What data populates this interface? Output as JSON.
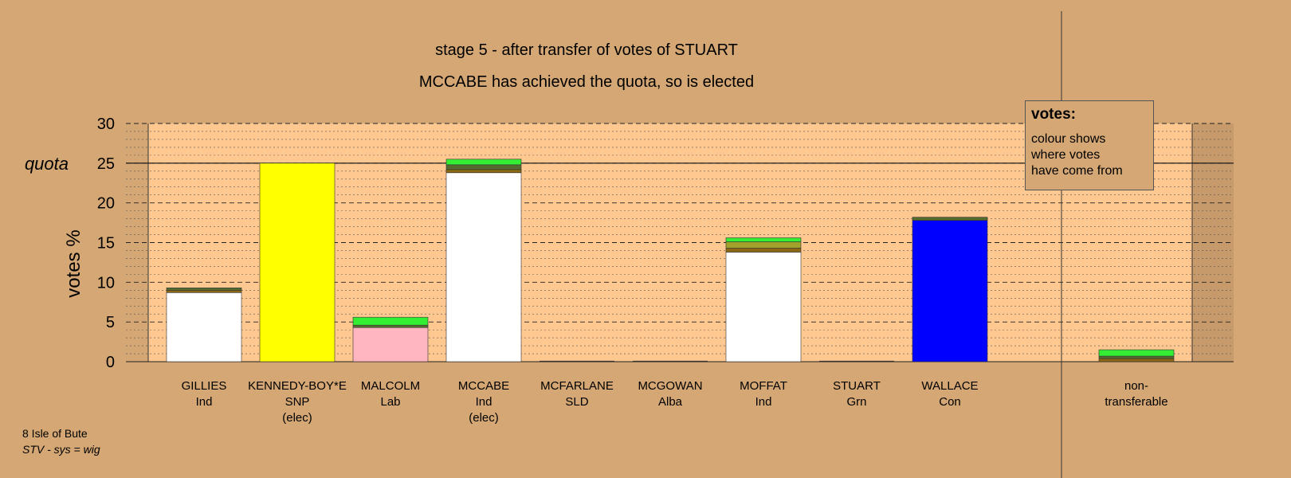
{
  "title": "stage 5 - after transfer of votes of STUART",
  "subtitle": "MCCABE has achieved the quota, so is elected",
  "legend": {
    "title": "votes:",
    "lines": [
      "colour shows",
      "where votes",
      "have come from"
    ]
  },
  "footer": {
    "line1": "8 Isle of Bute",
    "line2": "STV - sys = wig"
  },
  "chart_data": {
    "type": "bar",
    "stacked": true,
    "ylabel": "votes %",
    "ylim": [
      0,
      30
    ],
    "yticks": [
      0,
      5,
      10,
      15,
      20,
      25,
      30
    ],
    "quota": 25,
    "quota_label": "quota",
    "grid": true,
    "legend_position": "top-right",
    "categories": [
      {
        "name": "GILLIES",
        "party": "Ind",
        "status": ""
      },
      {
        "name": "KENNEDY-BOY*E",
        "party": "SNP",
        "status": "(elec)"
      },
      {
        "name": "MALCOLM",
        "party": "Lab",
        "status": ""
      },
      {
        "name": "MCCABE",
        "party": "Ind",
        "status": "(elec)"
      },
      {
        "name": "MCFARLANE",
        "party": "SLD",
        "status": ""
      },
      {
        "name": "MCGOWAN",
        "party": "Alba",
        "status": ""
      },
      {
        "name": "MOFFAT",
        "party": "Ind",
        "status": ""
      },
      {
        "name": "STUART",
        "party": "Grn",
        "status": ""
      },
      {
        "name": "WALLACE",
        "party": "Con",
        "status": ""
      },
      {
        "name": "non-",
        "party": "transferable",
        "status": ""
      }
    ],
    "segments": [
      [
        {
          "value": 8.7,
          "color": "#ffffff"
        },
        {
          "value": 0.3,
          "color": "#8b6914"
        },
        {
          "value": 0.3,
          "color": "#556b2f"
        }
      ],
      [
        {
          "value": 25.0,
          "color": "#ffff00"
        }
      ],
      [
        {
          "value": 4.3,
          "color": "#ffb6c1"
        },
        {
          "value": 0.3,
          "color": "#556b2f"
        },
        {
          "value": 1.0,
          "color": "#33ee33"
        }
      ],
      [
        {
          "value": 23.8,
          "color": "#ffffff"
        },
        {
          "value": 0.4,
          "color": "#8b6914"
        },
        {
          "value": 0.6,
          "color": "#556b2f"
        },
        {
          "value": 0.7,
          "color": "#33ee33"
        }
      ],
      [
        {
          "value": 0,
          "color": "#ffffff"
        }
      ],
      [
        {
          "value": 0,
          "color": "#ffffff"
        }
      ],
      [
        {
          "value": 13.8,
          "color": "#ffffff"
        },
        {
          "value": 0.5,
          "color": "#8b6914"
        },
        {
          "value": 0.8,
          "color": "#a2a22a"
        },
        {
          "value": 0.5,
          "color": "#33ee33"
        }
      ],
      [
        {
          "value": 0,
          "color": "#ffffff"
        }
      ],
      [
        {
          "value": 17.8,
          "color": "#0000ff"
        },
        {
          "value": 0.4,
          "color": "#556b2f"
        }
      ],
      [
        {
          "value": 0.4,
          "color": "#8b6914"
        },
        {
          "value": 0.3,
          "color": "#556b2f"
        },
        {
          "value": 0.8,
          "color": "#33ee33"
        }
      ]
    ],
    "colors": {
      "plot_background": "#ffc890",
      "page_background": "#d4a774"
    }
  }
}
